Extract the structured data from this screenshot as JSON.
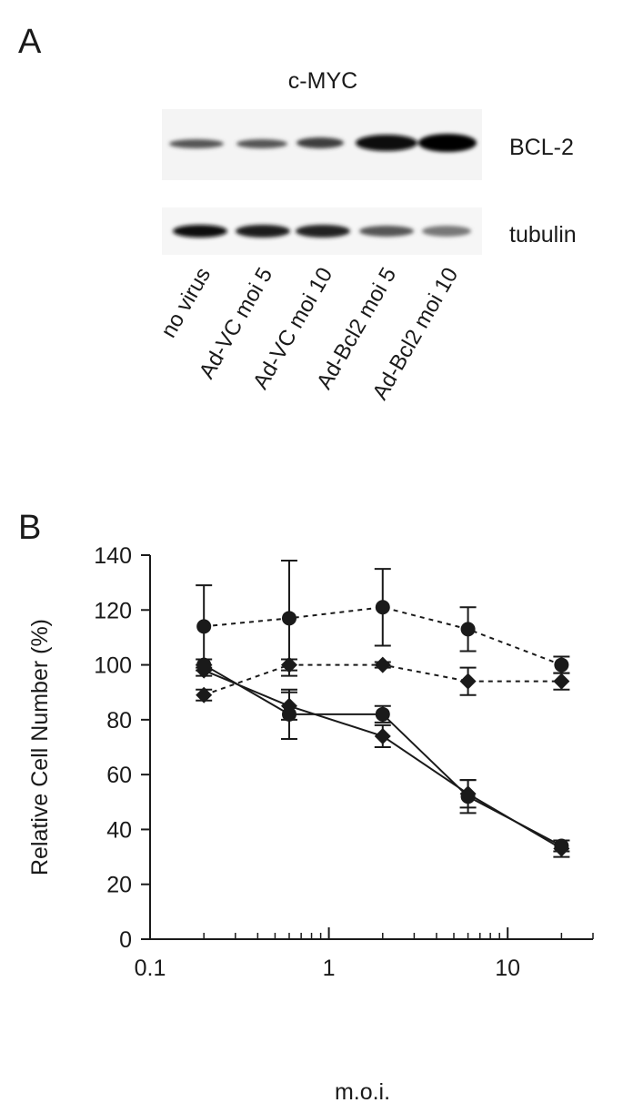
{
  "panel_a": {
    "label": "A",
    "title": "c-MYC",
    "rows": [
      "BCL-2",
      "tubulin"
    ],
    "lanes": [
      "no virus",
      "Ad-VC moi 5",
      "Ad-VC moi 10",
      "Ad-Bcl2 moi 5",
      "Ad-Bcl2 moi 10"
    ]
  },
  "panel_b_label": "B",
  "chart_data": {
    "type": "line",
    "xlabel": "m.o.i.",
    "ylabel": "Relative Cell Number (%)",
    "x": [
      0.2,
      0.6,
      2,
      6,
      20
    ],
    "xscale": "log",
    "xlim": [
      0.1,
      30
    ],
    "xticks": [
      0.1,
      1,
      10
    ],
    "ylim": [
      0,
      140
    ],
    "yticks": [
      0,
      20,
      40,
      60,
      80,
      100,
      120,
      140
    ],
    "series": [
      {
        "color": "#1a1a1a",
        "linestyle": "dashed",
        "marker": "circle",
        "values": [
          114,
          117,
          121,
          113,
          100
        ],
        "errors": [
          15,
          21,
          14,
          8,
          3
        ]
      },
      {
        "color": "#1a1a1a",
        "linestyle": "dashed",
        "marker": "diamond",
        "values": [
          89,
          100,
          100,
          94,
          94
        ],
        "errors": [
          2,
          2,
          1,
          5,
          3
        ]
      },
      {
        "color": "#1a1a1a",
        "linestyle": "solid",
        "marker": "circle",
        "values": [
          100,
          82,
          82,
          52,
          34
        ],
        "errors": [
          2,
          9,
          3,
          6,
          2
        ]
      },
      {
        "color": "#1a1a1a",
        "linestyle": "solid",
        "marker": "diamond",
        "values": [
          98,
          85,
          74,
          53,
          33
        ],
        "errors": [
          2,
          5,
          4,
          5,
          3
        ]
      }
    ]
  }
}
